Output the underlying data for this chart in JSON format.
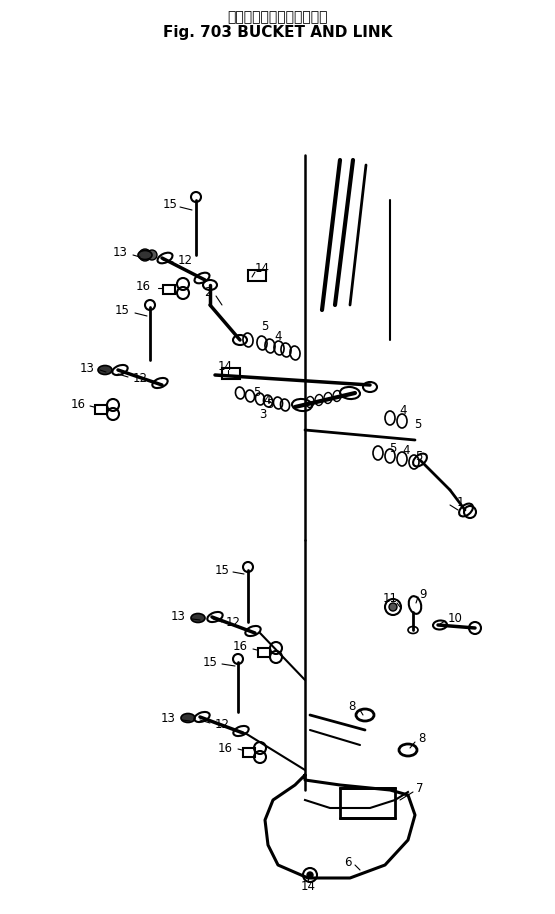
{
  "title_japanese": "バケット　および　リンク",
  "title_english": "Fig. 703 BUCKET AND LINK",
  "bg_color": "#ffffff",
  "line_color": "#000000",
  "fig_width": 5.55,
  "fig_height": 9.14,
  "label_fontsize": 8.5
}
